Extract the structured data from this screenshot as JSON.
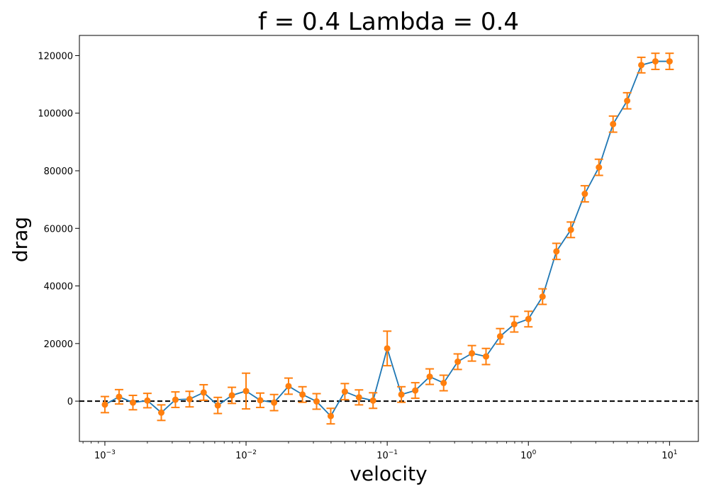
{
  "chart_data": {
    "type": "line",
    "title": "f = 0.4 Lambda = 0.4",
    "xlabel": "velocity",
    "ylabel": "drag",
    "xscale": "log",
    "xlim": [
      0.00066,
      16
    ],
    "ylim": [
      -14000,
      127000
    ],
    "xtick_values": [
      0.001,
      0.01,
      0.1,
      1,
      10
    ],
    "xtick_labels": [
      {
        "base": "10",
        "exp": "−3"
      },
      {
        "base": "10",
        "exp": "−2"
      },
      {
        "base": "10",
        "exp": "−1"
      },
      {
        "base": "10",
        "exp": "0"
      },
      {
        "base": "10",
        "exp": "1"
      }
    ],
    "yticks": [
      0,
      20000,
      40000,
      60000,
      80000,
      100000,
      120000
    ],
    "ytick_labels": [
      "0",
      "20000",
      "40000",
      "60000",
      "80000",
      "100000",
      "120000"
    ],
    "grid": false,
    "reference_line": {
      "y": 0,
      "style": "dashed",
      "color": "#000000"
    },
    "series": [
      {
        "line_color": "#1f77b4",
        "marker_color": "#ff7f0e",
        "x": [
          0.001,
          0.00126,
          0.00158,
          0.002,
          0.00251,
          0.00316,
          0.00398,
          0.00501,
          0.00631,
          0.00794,
          0.01,
          0.0126,
          0.0158,
          0.02,
          0.0251,
          0.0316,
          0.0398,
          0.0501,
          0.0631,
          0.0794,
          0.1,
          0.126,
          0.158,
          0.2,
          0.251,
          0.316,
          0.398,
          0.501,
          0.631,
          0.794,
          1.0,
          1.26,
          1.58,
          2.0,
          2.51,
          3.16,
          3.98,
          5.01,
          6.31,
          7.94,
          10.0
        ],
        "y": [
          -1200,
          1500,
          -500,
          200,
          -4000,
          500,
          700,
          3000,
          -1500,
          2000,
          3500,
          300,
          -500,
          5200,
          2300,
          -100,
          -5200,
          3300,
          1300,
          200,
          18300,
          2300,
          3700,
          8500,
          6300,
          13700,
          16600,
          15500,
          22500,
          26700,
          28500,
          36300,
          52000,
          59500,
          72000,
          81200,
          96200,
          104300,
          116700,
          118000,
          118000
        ],
        "err": [
          2800,
          2500,
          2500,
          2500,
          2700,
          2700,
          2700,
          2700,
          2800,
          2800,
          6200,
          2500,
          2800,
          2800,
          2700,
          2700,
          2700,
          2800,
          2600,
          2700,
          6000,
          2700,
          2700,
          2700,
          2700,
          2700,
          2700,
          2800,
          2700,
          2700,
          2700,
          2700,
          2800,
          2700,
          2800,
          2800,
          2800,
          2800,
          2700,
          2800,
          2800
        ]
      }
    ]
  }
}
